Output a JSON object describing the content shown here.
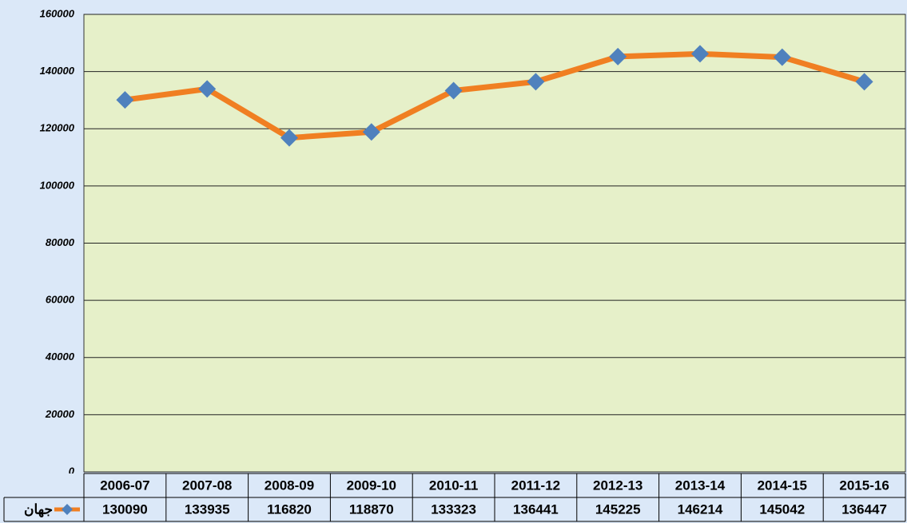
{
  "chart_data": {
    "type": "line",
    "categories": [
      "2006-07",
      "2007-08",
      "2008-09",
      "2009-10",
      "2010-11",
      "2011-12",
      "2012-13",
      "2013-14",
      "2014-15",
      "2015-16"
    ],
    "series": [
      {
        "name": "جهان",
        "color": "#f07f22",
        "marker_color": "#4f81bd",
        "values": [
          130090,
          133935,
          116820,
          118870,
          133323,
          136441,
          145225,
          146214,
          145042,
          136447
        ]
      }
    ],
    "ylim": [
      0,
      160000
    ],
    "yticks": [
      0,
      20000,
      40000,
      60000,
      80000,
      100000,
      120000,
      140000,
      160000
    ],
    "grid": true
  }
}
